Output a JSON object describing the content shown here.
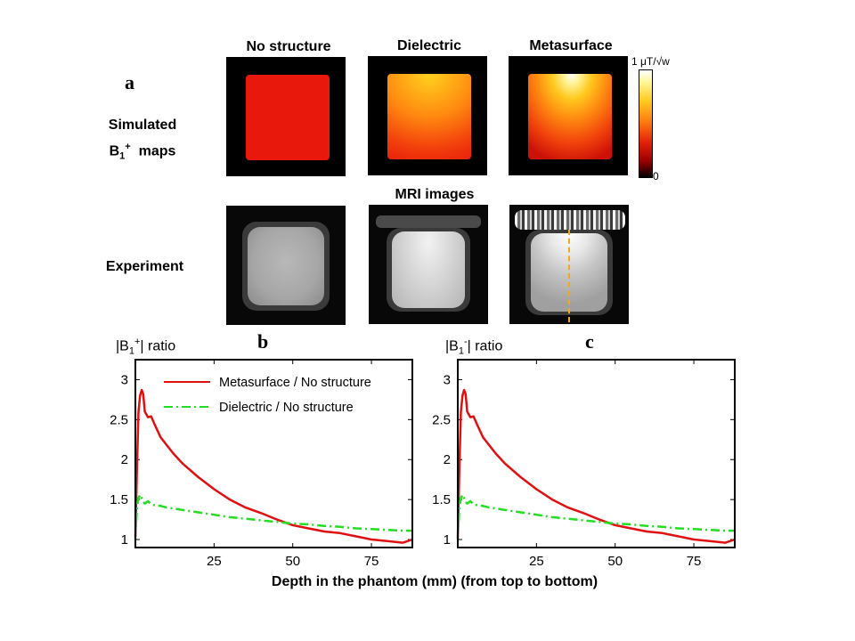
{
  "figure": {
    "panel_labels": {
      "a": "a",
      "b": "b",
      "c": "c"
    },
    "column_titles": [
      "No structure",
      "Dielectric",
      "Metasurface"
    ],
    "row_labels": {
      "simulated_line1": "Simulated",
      "simulated_line2_prefix": "B",
      "simulated_line2_sub": "1",
      "simulated_line2_sup": "+",
      "simulated_line2_suffix": "  maps",
      "experiment": "Experiment"
    },
    "mri_title": "MRI images",
    "colorbar": {
      "max_label": "1 μT/√w",
      "min_label": "0"
    }
  },
  "chart_data": [
    {
      "type": "line",
      "panel": "b",
      "ylabel_prefix": "|B",
      "ylabel_sub": "1",
      "ylabel_sup": "+",
      "ylabel_suffix": "| ratio",
      "xlabel": "Depth in the phantom  (mm) (from top to bottom)",
      "xlim": [
        0,
        88
      ],
      "ylim": [
        0.9,
        3.25
      ],
      "xticks": [
        25,
        50,
        75
      ],
      "yticks": [
        1,
        1.5,
        2,
        2.5,
        3
      ],
      "series": [
        {
          "name": "Metasurface / No structure",
          "color": "#e01010",
          "style": "solid",
          "x": [
            0,
            0.5,
            1,
            1.5,
            2,
            2.5,
            3,
            4,
            5,
            6,
            8,
            10,
            12,
            15,
            20,
            25,
            30,
            35,
            40,
            45,
            50,
            55,
            60,
            65,
            70,
            75,
            80,
            85,
            88
          ],
          "y": [
            1.02,
            1.9,
            2.6,
            2.8,
            2.87,
            2.82,
            2.6,
            2.53,
            2.54,
            2.45,
            2.28,
            2.18,
            2.08,
            1.95,
            1.78,
            1.63,
            1.5,
            1.4,
            1.33,
            1.25,
            1.18,
            1.14,
            1.1,
            1.08,
            1.04,
            1.0,
            0.98,
            0.96,
            1.0
          ]
        },
        {
          "name": "Dielectric / No structure",
          "color": "#22dd22",
          "style": "dashdot",
          "x": [
            0,
            0.5,
            1,
            1.5,
            2,
            2.5,
            3,
            4,
            5,
            6,
            8,
            10,
            15,
            20,
            25,
            30,
            35,
            40,
            45,
            50,
            55,
            60,
            65,
            70,
            75,
            80,
            85,
            88
          ],
          "y": [
            1.0,
            1.4,
            1.52,
            1.56,
            1.52,
            1.47,
            1.45,
            1.48,
            1.44,
            1.43,
            1.42,
            1.4,
            1.37,
            1.34,
            1.31,
            1.28,
            1.26,
            1.24,
            1.22,
            1.2,
            1.19,
            1.17,
            1.16,
            1.14,
            1.13,
            1.12,
            1.11,
            1.11
          ]
        }
      ]
    },
    {
      "type": "line",
      "panel": "c",
      "ylabel_prefix": "|B",
      "ylabel_sub": "1",
      "ylabel_sup": "-",
      "ylabel_suffix": "| ratio",
      "xlabel": "Depth in the phantom  (mm) (from top to bottom)",
      "xlim": [
        0,
        88
      ],
      "ylim": [
        0.9,
        3.25
      ],
      "xticks": [
        25,
        50,
        75
      ],
      "yticks": [
        1,
        1.5,
        2,
        2.5,
        3
      ],
      "series": [
        {
          "name": "Metasurface / No structure",
          "color": "#e01010",
          "style": "solid",
          "x": [
            0,
            0.5,
            1,
            1.5,
            2,
            2.5,
            3,
            4,
            5,
            6,
            8,
            10,
            12,
            15,
            20,
            25,
            30,
            35,
            40,
            45,
            50,
            55,
            60,
            65,
            70,
            75,
            80,
            85,
            88
          ],
          "y": [
            1.02,
            1.9,
            2.6,
            2.8,
            2.87,
            2.82,
            2.6,
            2.53,
            2.54,
            2.45,
            2.28,
            2.18,
            2.08,
            1.95,
            1.78,
            1.63,
            1.5,
            1.4,
            1.33,
            1.25,
            1.18,
            1.14,
            1.1,
            1.08,
            1.04,
            1.0,
            0.98,
            0.96,
            1.0
          ]
        },
        {
          "name": "Dielectric / No structure",
          "color": "#22dd22",
          "style": "dashdot",
          "x": [
            0,
            0.5,
            1,
            1.5,
            2,
            2.5,
            3,
            4,
            5,
            6,
            8,
            10,
            15,
            20,
            25,
            30,
            35,
            40,
            45,
            50,
            55,
            60,
            65,
            70,
            75,
            80,
            85,
            88
          ],
          "y": [
            1.0,
            1.4,
            1.52,
            1.56,
            1.52,
            1.47,
            1.45,
            1.48,
            1.44,
            1.43,
            1.42,
            1.4,
            1.37,
            1.34,
            1.31,
            1.28,
            1.26,
            1.24,
            1.22,
            1.2,
            1.19,
            1.17,
            1.16,
            1.14,
            1.13,
            1.12,
            1.11,
            1.11
          ]
        }
      ]
    }
  ]
}
